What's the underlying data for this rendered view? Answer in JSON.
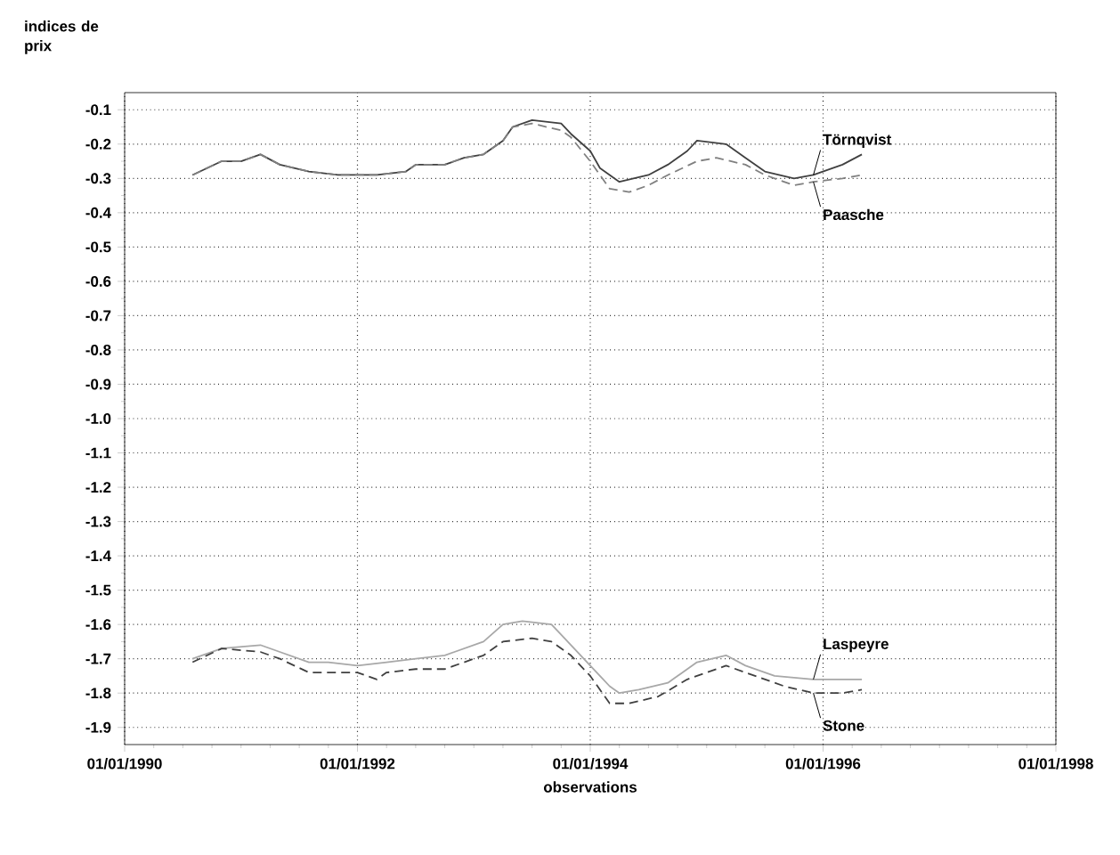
{
  "chart_data": {
    "type": "line",
    "xlabel": "observations",
    "ylabel": "indices de prix",
    "xlim": [
      "1990-01-01",
      "1998-01-01"
    ],
    "xticks": [
      {
        "value": "1990-01-01",
        "label": "01/01/1990"
      },
      {
        "value": "1992-01-01",
        "label": "01/01/1992"
      },
      {
        "value": "1994-01-01",
        "label": "01/01/1994"
      },
      {
        "value": "1996-01-01",
        "label": "01/01/1996"
      },
      {
        "value": "1998-01-01",
        "label": "01/01/1998"
      }
    ],
    "ylim": [
      -1.95,
      -0.05
    ],
    "yticks": [
      -0.1,
      -0.2,
      -0.3,
      -0.4,
      -0.5,
      -0.6,
      -0.7,
      -0.8,
      -0.9,
      {
        "value": -1.0,
        "label": "-1.0"
      },
      -1.1,
      -1.2,
      -1.3,
      -1.4,
      -1.5,
      -1.6,
      -1.7,
      -1.8,
      -1.9
    ],
    "grid": true,
    "legend": false,
    "marker": "none",
    "series": [
      {
        "name": "Törnqvist",
        "color": "#404040",
        "line_style": "solid",
        "x": [
          "1990-08",
          "1990-11",
          "1991-01",
          "1991-03",
          "1991-05",
          "1991-08",
          "1991-11",
          "1992-03",
          "1992-06",
          "1992-07",
          "1992-10",
          "1992-12",
          "1993-02",
          "1993-04",
          "1993-05",
          "1993-07",
          "1993-10",
          "1993-11",
          "1994-01",
          "1994-02",
          "1994-04",
          "1994-07",
          "1994-09",
          "1994-11",
          "1994-12",
          "1995-03",
          "1995-05",
          "1995-07",
          "1995-10",
          "1995-12",
          "1996-03",
          "1996-05"
        ],
        "values": [
          -0.29,
          -0.25,
          -0.25,
          -0.23,
          -0.26,
          -0.28,
          -0.29,
          -0.29,
          -0.28,
          -0.26,
          -0.26,
          -0.24,
          -0.23,
          -0.19,
          -0.15,
          -0.13,
          -0.14,
          -0.17,
          -0.22,
          -0.27,
          -0.31,
          -0.29,
          -0.26,
          -0.22,
          -0.19,
          -0.2,
          -0.24,
          -0.28,
          -0.3,
          -0.29,
          -0.26,
          -0.23
        ]
      },
      {
        "name": "Paasche",
        "color": "#808080",
        "line_style": "dashed",
        "x": [
          "1990-08",
          "1990-11",
          "1991-01",
          "1991-03",
          "1991-05",
          "1991-08",
          "1991-11",
          "1992-03",
          "1992-06",
          "1992-07",
          "1992-10",
          "1992-12",
          "1993-02",
          "1993-04",
          "1993-05",
          "1993-07",
          "1993-10",
          "1993-11",
          "1994-01",
          "1994-03",
          "1994-05",
          "1994-07",
          "1994-09",
          "1994-12",
          "1995-02",
          "1995-05",
          "1995-07",
          "1995-10",
          "1995-12",
          "1996-03",
          "1996-05"
        ],
        "values": [
          -0.29,
          -0.25,
          -0.25,
          -0.23,
          -0.26,
          -0.28,
          -0.29,
          -0.29,
          -0.28,
          -0.26,
          -0.26,
          -0.24,
          -0.23,
          -0.19,
          -0.15,
          -0.14,
          -0.16,
          -0.18,
          -0.25,
          -0.33,
          -0.34,
          -0.32,
          -0.29,
          -0.25,
          -0.24,
          -0.26,
          -0.29,
          -0.32,
          -0.31,
          -0.3,
          -0.29
        ]
      },
      {
        "name": "Laspeyre",
        "color": "#a8a8a8",
        "line_style": "solid",
        "x": [
          "1990-08",
          "1990-11",
          "1991-03",
          "1991-05",
          "1991-08",
          "1991-10",
          "1992-01",
          "1992-04",
          "1992-07",
          "1992-10",
          "1992-12",
          "1993-02",
          "1993-04",
          "1993-06",
          "1993-09",
          "1993-10",
          "1994-01",
          "1994-03",
          "1994-04",
          "1994-06",
          "1994-09",
          "1994-12",
          "1995-03",
          "1995-05",
          "1995-08",
          "1995-12",
          "1996-03",
          "1996-05"
        ],
        "values": [
          -1.7,
          -1.67,
          -1.66,
          -1.68,
          -1.71,
          -1.71,
          -1.72,
          -1.71,
          -1.7,
          -1.69,
          -1.67,
          -1.65,
          -1.6,
          -1.59,
          -1.6,
          -1.63,
          -1.72,
          -1.78,
          -1.8,
          -1.79,
          -1.77,
          -1.71,
          -1.69,
          -1.72,
          -1.75,
          -1.76,
          -1.76,
          -1.76
        ]
      },
      {
        "name": "Stone",
        "color": "#404040",
        "line_style": "dashed",
        "x": [
          "1990-08",
          "1990-11",
          "1991-03",
          "1991-05",
          "1991-08",
          "1991-10",
          "1992-01",
          "1992-03",
          "1992-04",
          "1992-07",
          "1992-10",
          "1992-12",
          "1993-02",
          "1993-04",
          "1993-07",
          "1993-09",
          "1993-11",
          "1994-01",
          "1994-03",
          "1994-05",
          "1994-08",
          "1994-11",
          "1995-01",
          "1995-03",
          "1995-05",
          "1995-09",
          "1995-12",
          "1996-03",
          "1996-05"
        ],
        "values": [
          -1.71,
          -1.67,
          -1.68,
          -1.7,
          -1.74,
          -1.74,
          -1.74,
          -1.76,
          -1.74,
          -1.73,
          -1.73,
          -1.71,
          -1.69,
          -1.65,
          -1.64,
          -1.65,
          -1.69,
          -1.75,
          -1.83,
          -1.83,
          -1.81,
          -1.76,
          -1.74,
          -1.72,
          -1.74,
          -1.78,
          -1.8,
          -1.8,
          -1.79
        ]
      }
    ]
  }
}
